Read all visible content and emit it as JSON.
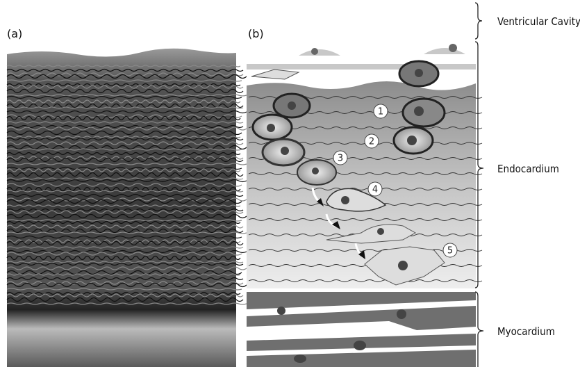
{
  "panels": [
    {
      "label": "(a)"
    },
    {
      "label": "(b)"
    }
  ],
  "regions": [
    {
      "label": "Ventricular Cavity"
    },
    {
      "label": "Endocardium"
    },
    {
      "label": "Myocardium"
    }
  ],
  "stages": [
    "1",
    "2",
    "3",
    "4",
    "5"
  ]
}
